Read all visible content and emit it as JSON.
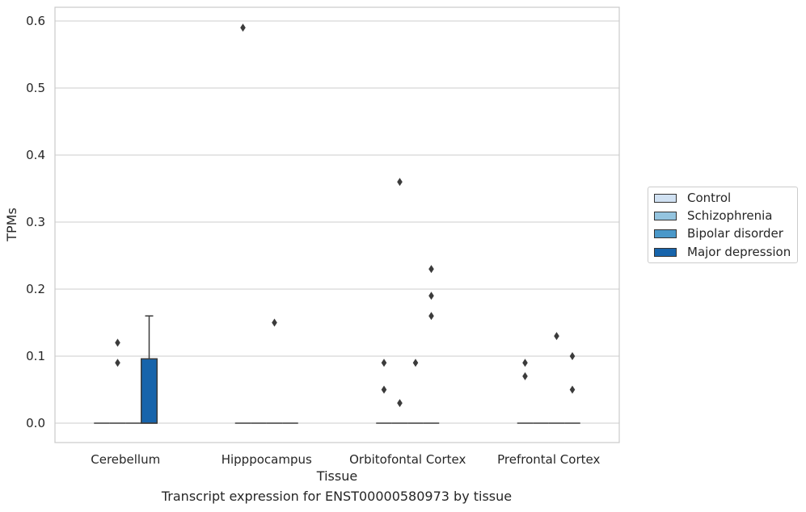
{
  "chart_data": {
    "type": "box",
    "title": "",
    "caption": "Transcript expression for ENST00000580973 by tissue",
    "xlabel": "Tissue",
    "ylabel": "TPMs",
    "ylim": [
      -0.028,
      0.62
    ],
    "yticks": [
      0.0,
      0.1,
      0.2,
      0.3,
      0.4,
      0.5,
      0.6
    ],
    "ytick_labels": [
      "0.0",
      "0.1",
      "0.2",
      "0.3",
      "0.4",
      "0.5",
      "0.6"
    ],
    "grid": true,
    "legend_position": "right",
    "categories": [
      "Cerebellum",
      "Hipppocampus",
      "Orbitofontal Cortex",
      "Prefrontal Cortex"
    ],
    "series": [
      {
        "name": "Control",
        "color": "#d0e1f2",
        "boxes": [
          {
            "q1": 0,
            "median": 0,
            "q3": 0,
            "whisker_low": 0,
            "whisker_high": 0,
            "outliers": []
          },
          {
            "q1": 0,
            "median": 0,
            "q3": 0,
            "whisker_low": 0,
            "whisker_high": 0,
            "outliers": [
              0.59
            ]
          },
          {
            "q1": 0,
            "median": 0,
            "q3": 0,
            "whisker_low": 0,
            "whisker_high": 0,
            "outliers": [
              0.09,
              0.05
            ]
          },
          {
            "q1": 0,
            "median": 0,
            "q3": 0,
            "whisker_low": 0,
            "whisker_high": 0,
            "outliers": [
              0.09,
              0.07
            ]
          }
        ]
      },
      {
        "name": "Schizophrenia",
        "color": "#94c4df",
        "boxes": [
          {
            "q1": 0,
            "median": 0,
            "q3": 0,
            "whisker_low": 0,
            "whisker_high": 0,
            "outliers": [
              0.12,
              0.09
            ]
          },
          {
            "q1": 0,
            "median": 0,
            "q3": 0,
            "whisker_low": 0,
            "whisker_high": 0,
            "outliers": []
          },
          {
            "q1": 0,
            "median": 0,
            "q3": 0,
            "whisker_low": 0,
            "whisker_high": 0,
            "outliers": [
              0.36,
              0.03
            ]
          },
          {
            "q1": 0,
            "median": 0,
            "q3": 0,
            "whisker_low": 0,
            "whisker_high": 0,
            "outliers": []
          }
        ]
      },
      {
        "name": "Bipolar disorder",
        "color": "#4a98c9",
        "boxes": [
          {
            "q1": 0,
            "median": 0,
            "q3": 0,
            "whisker_low": 0,
            "whisker_high": 0,
            "outliers": []
          },
          {
            "q1": 0,
            "median": 0,
            "q3": 0,
            "whisker_low": 0,
            "whisker_high": 0,
            "outliers": [
              0.15
            ]
          },
          {
            "q1": 0,
            "median": 0,
            "q3": 0,
            "whisker_low": 0,
            "whisker_high": 0,
            "outliers": [
              0.09
            ]
          },
          {
            "q1": 0,
            "median": 0,
            "q3": 0,
            "whisker_low": 0,
            "whisker_high": 0,
            "outliers": [
              0.13
            ]
          }
        ]
      },
      {
        "name": "Major depression",
        "color": "#1764ab",
        "boxes": [
          {
            "q1": 0,
            "median": 0,
            "q3": 0.096,
            "whisker_low": 0,
            "whisker_high": 0.16,
            "outliers": []
          },
          {
            "q1": 0,
            "median": 0,
            "q3": 0,
            "whisker_low": 0,
            "whisker_high": 0,
            "outliers": []
          },
          {
            "q1": 0,
            "median": 0,
            "q3": 0,
            "whisker_low": 0,
            "whisker_high": 0,
            "outliers": [
              0.23,
              0.19,
              0.16
            ]
          },
          {
            "q1": 0,
            "median": 0,
            "q3": 0,
            "whisker_low": 0,
            "whisker_high": 0,
            "outliers": [
              0.1,
              0.05
            ]
          }
        ]
      }
    ]
  }
}
